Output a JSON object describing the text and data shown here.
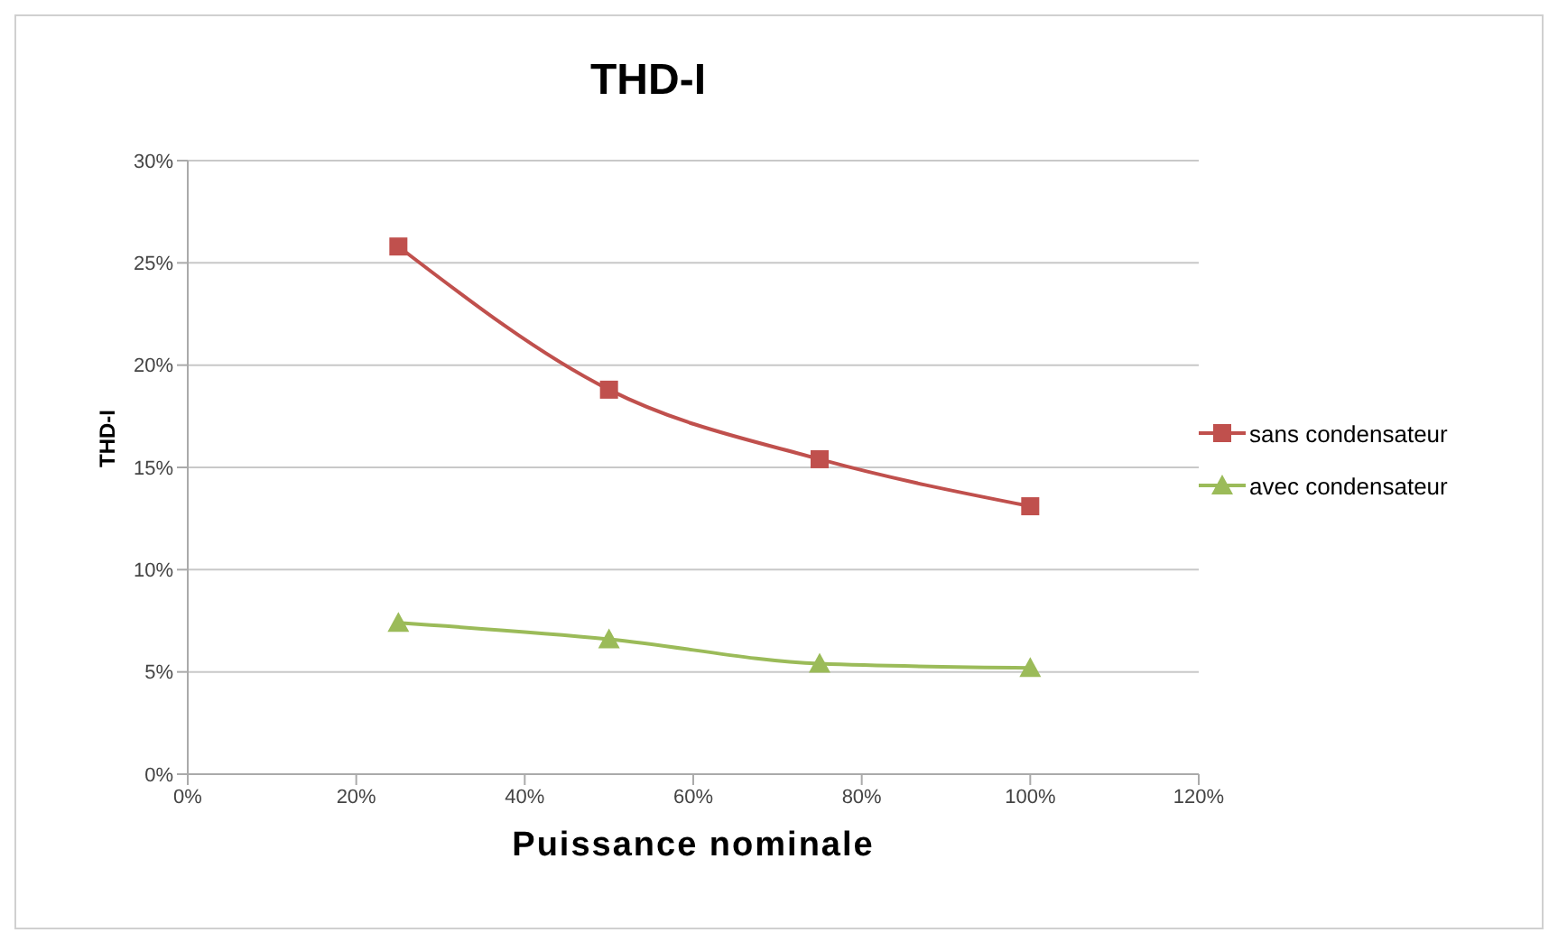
{
  "chart_data": {
    "type": "line",
    "title": "THD-I",
    "xlabel": "Puissance nominale",
    "ylabel": "THD-I",
    "x": [
      25,
      50,
      75,
      100
    ],
    "series": [
      {
        "name": "sans condensateur",
        "color": "#c0504d",
        "marker": "square",
        "values": [
          25.8,
          18.8,
          15.4,
          13.1
        ]
      },
      {
        "name": "avec condensateur",
        "color": "#9bbb59",
        "marker": "triangle",
        "values": [
          7.4,
          6.6,
          5.4,
          5.2
        ]
      }
    ],
    "xlim": [
      0,
      120
    ],
    "xticks": [
      {
        "value": 0,
        "label": "0%"
      },
      {
        "value": 20,
        "label": "20%"
      },
      {
        "value": 40,
        "label": "40%"
      },
      {
        "value": 60,
        "label": "60%"
      },
      {
        "value": 80,
        "label": "80%"
      },
      {
        "value": 100,
        "label": "100%"
      },
      {
        "value": 120,
        "label": "120%"
      }
    ],
    "ylim": [
      0,
      30
    ],
    "yticks": [
      {
        "value": 0,
        "label": "0%"
      },
      {
        "value": 5,
        "label": "5%"
      },
      {
        "value": 10,
        "label": "10%"
      },
      {
        "value": 15,
        "label": "15%"
      },
      {
        "value": 20,
        "label": "20%"
      },
      {
        "value": 25,
        "label": "25%"
      },
      {
        "value": 30,
        "label": "30%"
      }
    ],
    "grid": "y",
    "legend": "right"
  }
}
